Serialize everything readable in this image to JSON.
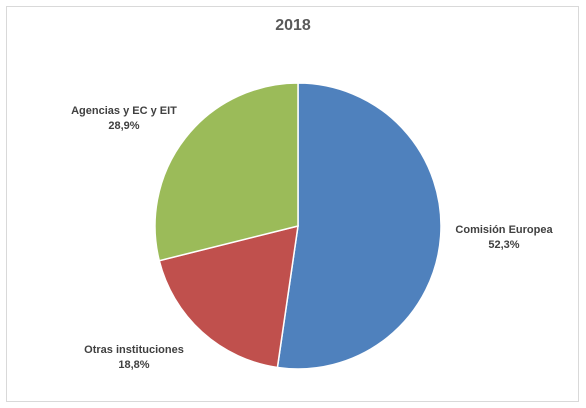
{
  "chart_data": {
    "type": "pie",
    "title": "2018",
    "categories": [
      "Comisión Europea",
      "Otras instituciones",
      "Agencias y EC y EIT"
    ],
    "values": [
      52.3,
      18.8,
      28.9
    ],
    "value_labels": [
      "52,3%",
      "18,8%",
      "28,9%"
    ],
    "colors": [
      "#4f81bd",
      "#c0504d",
      "#9bbb59"
    ],
    "unit": "%",
    "start_angle": "12 o'clock",
    "direction": "clockwise",
    "legend": "none",
    "data_labels": "category name and percentage, outside slices"
  }
}
